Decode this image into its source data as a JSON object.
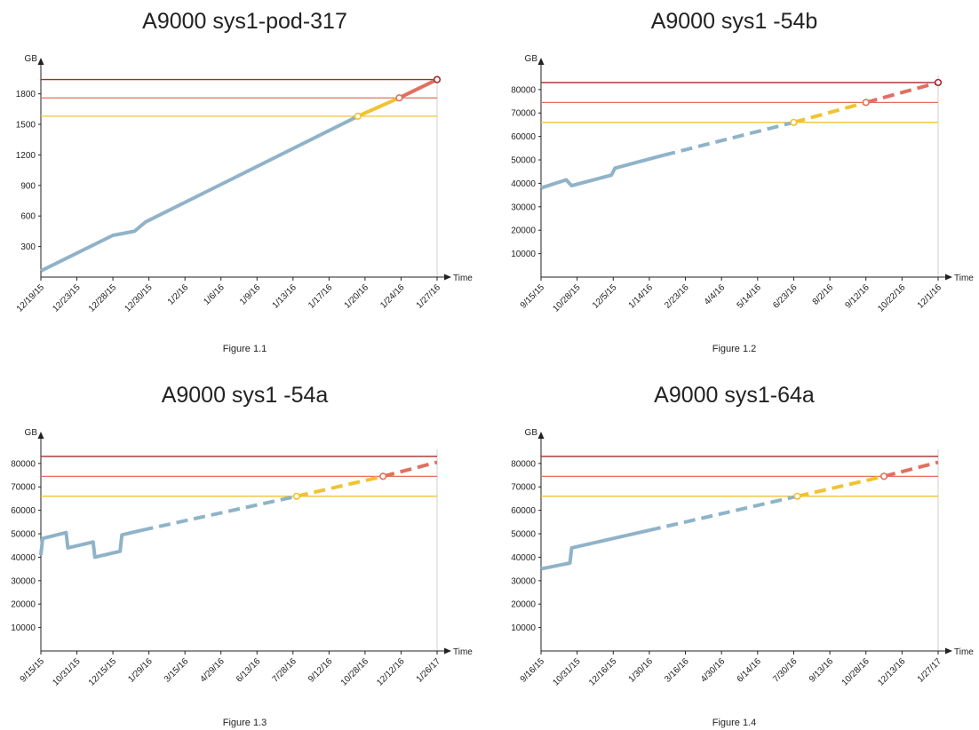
{
  "chart_data": [
    {
      "type": "line",
      "title": "A9000 sys1-pod-317",
      "caption": "Figure 1.1",
      "ylabel": "GB",
      "xlabel": "Time",
      "xticks": [
        "12/19/15",
        "12/23/15",
        "12/28/15",
        "12/30/15",
        "1/2/16",
        "1/6/16",
        "1/9/16",
        "1/13/16",
        "1/17/16",
        "1/20/16",
        "1/24/16",
        "1/27/16"
      ],
      "ylim": [
        0,
        1980
      ],
      "yticks": [
        300,
        600,
        900,
        1200,
        1500,
        1800
      ],
      "thresholds": [
        {
          "value": 1580,
          "color": "#f2c230",
          "marker_x": 8.8
        },
        {
          "value": 1760,
          "color": "#e07060",
          "marker_x": 9.95
        },
        {
          "value": 1940,
          "color": "#a52a2a",
          "marker_x": 11.0
        }
      ],
      "series": [
        {
          "style": "solid",
          "color": "#8fb3c8",
          "points": [
            [
              0,
              60
            ],
            [
              2,
              410
            ],
            [
              2.6,
              450
            ],
            [
              2.9,
              540
            ],
            [
              8.8,
              1580
            ]
          ]
        },
        {
          "style": "solid",
          "color": "#f2c230",
          "points": [
            [
              8.8,
              1580
            ],
            [
              9.95,
              1760
            ]
          ]
        },
        {
          "style": "solid",
          "color": "#e07060",
          "points": [
            [
              9.95,
              1760
            ],
            [
              11.0,
              1940
            ]
          ]
        }
      ]
    },
    {
      "type": "line",
      "title": "A9000 sys1 -54b",
      "caption": "Figure 1.2",
      "ylabel": "GB",
      "xlabel": "Time",
      "xticks": [
        "9/15/15",
        "10/28/15",
        "12/5/15",
        "1/14/16",
        "2/23/16",
        "4/4/16",
        "5/14/16",
        "6/23/16",
        "8/2/16",
        "9/12/16",
        "10/22/16",
        "12/1/16"
      ],
      "ylim": [
        0,
        86000
      ],
      "yticks": [
        10000,
        20000,
        30000,
        40000,
        50000,
        60000,
        70000,
        80000
      ],
      "thresholds": [
        {
          "value": 66000,
          "color": "#f2c230",
          "marker_x": 7.0
        },
        {
          "value": 74500,
          "color": "#e07060",
          "marker_x": 9.0
        },
        {
          "value": 83000,
          "color": "#a52a2a",
          "marker_x": 11.0
        }
      ],
      "series": [
        {
          "style": "solid",
          "color": "#8fb3c8",
          "points": [
            [
              0,
              38000
            ],
            [
              0.7,
              41500
            ],
            [
              0.85,
              39000
            ],
            [
              1.95,
              43500
            ],
            [
              2.05,
              46500
            ],
            [
              3.4,
              52000
            ]
          ]
        },
        {
          "style": "dashed",
          "color": "#8fb3c8",
          "points": [
            [
              3.4,
              52000
            ],
            [
              7.0,
              66000
            ]
          ]
        },
        {
          "style": "dashed",
          "color": "#f2c230",
          "points": [
            [
              7.0,
              66000
            ],
            [
              9.0,
              74500
            ]
          ]
        },
        {
          "style": "dashed",
          "color": "#e07060",
          "points": [
            [
              9.0,
              74500
            ],
            [
              11.0,
              83000
            ]
          ]
        }
      ]
    },
    {
      "type": "line",
      "title": "A9000 sys1 -54a",
      "caption": "Figure 1.3",
      "ylabel": "GB",
      "xlabel": "Time",
      "xticks": [
        "9/15/15",
        "10/31/15",
        "12/15/15",
        "1/29/16",
        "3/15/16",
        "4/29/16",
        "6/13/16",
        "7/28/16",
        "9/12/16",
        "10/28/16",
        "12/12/16",
        "1/26/17"
      ],
      "ylim": [
        0,
        86000
      ],
      "yticks": [
        10000,
        20000,
        30000,
        40000,
        50000,
        60000,
        70000,
        80000
      ],
      "thresholds": [
        {
          "value": 66000,
          "color": "#f2c230",
          "marker_x": 7.1
        },
        {
          "value": 74500,
          "color": "#e07060",
          "marker_x": 9.5
        },
        {
          "value": 83000,
          "color": "#a52a2a",
          "marker_x": null
        }
      ],
      "series": [
        {
          "style": "solid",
          "color": "#8fb3c8",
          "points": [
            [
              0,
              41000
            ],
            [
              0.05,
              48000
            ],
            [
              0.7,
              50500
            ],
            [
              0.75,
              44000
            ],
            [
              1.45,
              46500
            ],
            [
              1.5,
              40000
            ],
            [
              2.2,
              42500
            ],
            [
              2.25,
              49500
            ],
            [
              2.8,
              51500
            ]
          ]
        },
        {
          "style": "dashed",
          "color": "#8fb3c8",
          "points": [
            [
              2.8,
              51500
            ],
            [
              7.1,
              66000
            ]
          ]
        },
        {
          "style": "dashed",
          "color": "#f2c230",
          "points": [
            [
              7.1,
              66000
            ],
            [
              9.5,
              74500
            ]
          ]
        },
        {
          "style": "dashed",
          "color": "#e07060",
          "points": [
            [
              9.5,
              74500
            ],
            [
              11.0,
              80500
            ]
          ]
        }
      ]
    },
    {
      "type": "line",
      "title": "A9000 sys1-64a",
      "caption": "Figure 1.4",
      "ylabel": "GB",
      "xlabel": "Time",
      "xticks": [
        "9/16/15",
        "10/31/15",
        "12/16/15",
        "1/30/16",
        "3/16/16",
        "4/30/16",
        "6/14/16",
        "7/30/16",
        "9/13/16",
        "10/28/16",
        "12/13/16",
        "1/27/17"
      ],
      "ylim": [
        0,
        86000
      ],
      "yticks": [
        10000,
        20000,
        30000,
        40000,
        50000,
        60000,
        70000,
        80000
      ],
      "thresholds": [
        {
          "value": 66000,
          "color": "#f2c230",
          "marker_x": 7.1
        },
        {
          "value": 74500,
          "color": "#e07060",
          "marker_x": 9.5
        },
        {
          "value": 83000,
          "color": "#a52a2a",
          "marker_x": null
        }
      ],
      "series": [
        {
          "style": "solid",
          "color": "#8fb3c8",
          "points": [
            [
              0,
              35000
            ],
            [
              0.8,
              37500
            ],
            [
              0.85,
              44000
            ],
            [
              3.0,
              51500
            ]
          ]
        },
        {
          "style": "dashed",
          "color": "#8fb3c8",
          "points": [
            [
              3.0,
              51500
            ],
            [
              7.1,
              66000
            ]
          ]
        },
        {
          "style": "dashed",
          "color": "#f2c230",
          "points": [
            [
              7.1,
              66000
            ],
            [
              9.5,
              74500
            ]
          ]
        },
        {
          "style": "dashed",
          "color": "#e07060",
          "points": [
            [
              9.5,
              74500
            ],
            [
              11.0,
              80500
            ]
          ]
        }
      ]
    }
  ]
}
